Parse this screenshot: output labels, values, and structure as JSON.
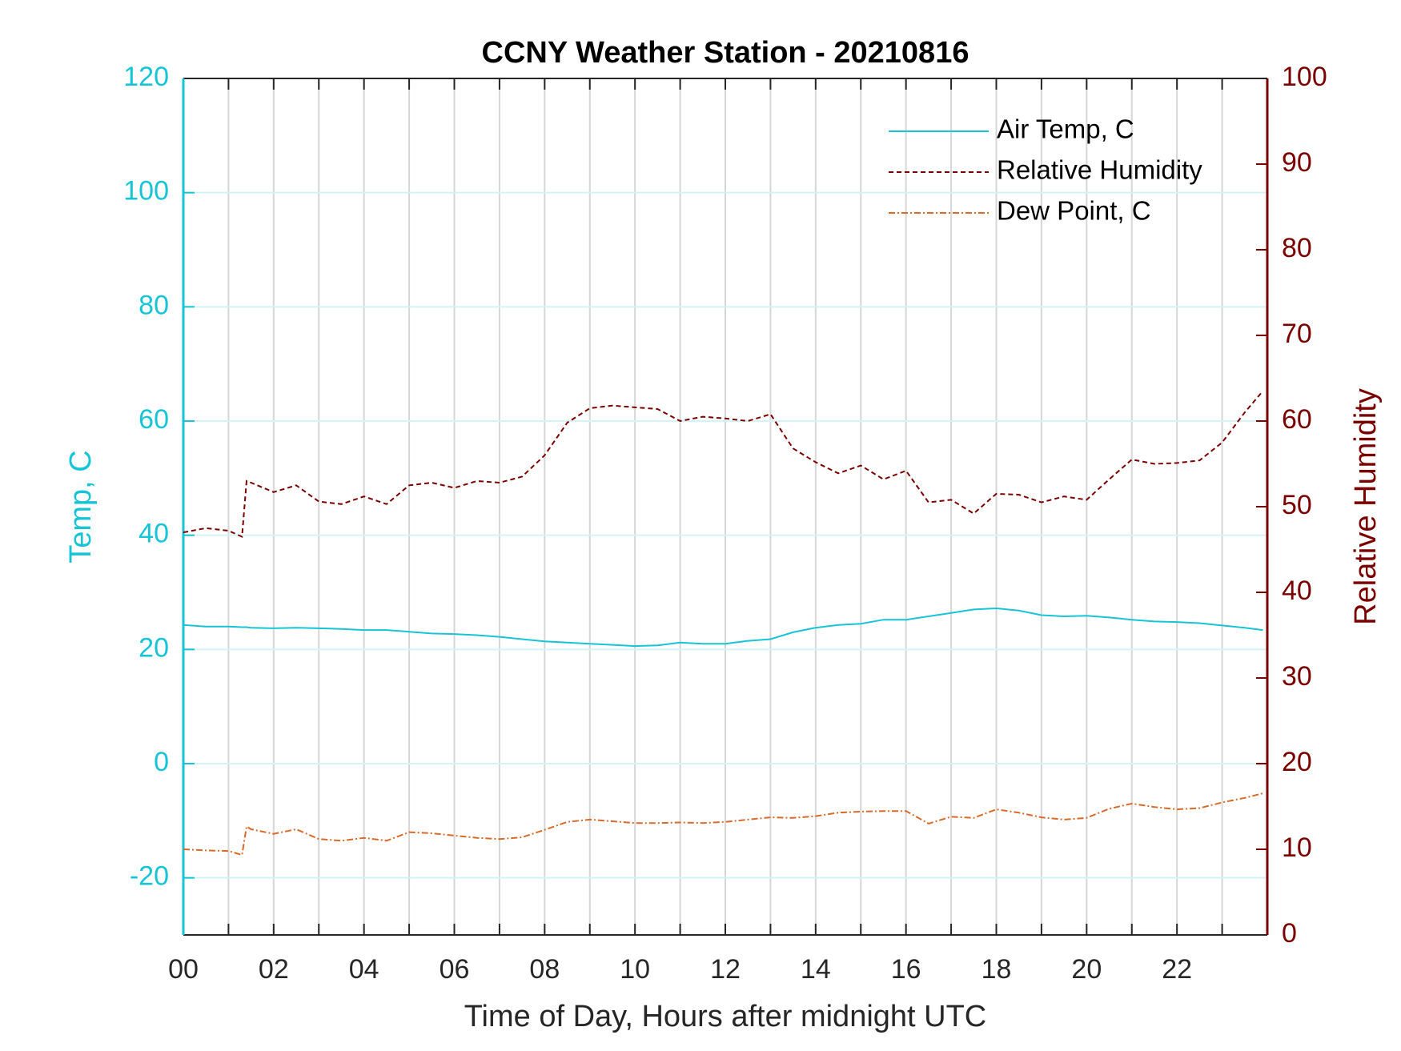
{
  "chart_data": {
    "type": "line",
    "title": "CCNY Weather Station - 20210816",
    "xlabel": "Time of Day, Hours after midnight UTC",
    "ylabel": "Temp, C",
    "y2label": "Relative Humidity",
    "x": [
      0,
      0.5,
      1,
      1.3,
      1.4,
      1.5,
      2,
      2.5,
      3,
      3.5,
      4,
      4.5,
      5,
      5.5,
      6,
      6.5,
      7,
      7.5,
      8,
      8.5,
      9,
      9.5,
      10,
      10.5,
      11,
      11.5,
      12,
      12.5,
      13,
      13.5,
      14,
      14.5,
      15,
      15.5,
      16,
      16.5,
      17,
      17.5,
      18,
      18.5,
      19,
      19.5,
      20,
      20.5,
      21,
      21.5,
      22,
      22.5,
      23,
      23.5,
      23.9
    ],
    "series": [
      {
        "name": "Air Temp, C",
        "color": "#17c4d6",
        "line_style": "solid",
        "values": [
          24.3,
          24,
          24,
          23.9,
          23.9,
          23.8,
          23.7,
          23.8,
          23.7,
          23.6,
          23.4,
          23.4,
          23.1,
          22.8,
          22.7,
          22.5,
          22.2,
          21.8,
          21.4,
          21.2,
          21,
          20.8,
          20.6,
          20.7,
          21.2,
          21,
          21,
          21.5,
          21.8,
          23,
          23.8,
          24.3,
          24.5,
          25.2,
          25.2,
          25.8,
          26.4,
          27,
          27.2,
          26.8,
          26,
          25.8,
          25.9,
          25.6,
          25.2,
          24.9,
          24.8,
          24.6,
          24.2,
          23.8,
          23.4
        ]
      },
      {
        "name": "Relative Humidity",
        "color": "#7a0000",
        "line_style": "dashed",
        "axis": "y2",
        "values": [
          47,
          47.5,
          47.2,
          46.5,
          53,
          52.8,
          51.7,
          52.5,
          50.6,
          50.3,
          51.2,
          50.3,
          52.5,
          52.8,
          52.2,
          53,
          52.8,
          53.5,
          56,
          59.8,
          61.5,
          61.8,
          61.6,
          61.4,
          60,
          60.5,
          60.3,
          60,
          60.8,
          56.8,
          55.2,
          53.9,
          54.8,
          53.2,
          54.2,
          50.5,
          50.8,
          49.2,
          51.5,
          51.4,
          50.5,
          51.2,
          50.8,
          53.2,
          55.5,
          55,
          55.1,
          55.4,
          57.5,
          61,
          63.5
        ]
      },
      {
        "name": "Dew Point, C",
        "color": "#d9692a",
        "line_style": "dashdot",
        "values": [
          -15,
          -15.2,
          -15.3,
          -16,
          -11,
          -11.5,
          -12.3,
          -11.5,
          -13.2,
          -13.5,
          -13,
          -13.5,
          -12,
          -12.2,
          -12.6,
          -13,
          -13.2,
          -12.9,
          -11.6,
          -10.2,
          -9.8,
          -10.1,
          -10.4,
          -10.4,
          -10.3,
          -10.4,
          -10.2,
          -9.8,
          -9.4,
          -9.5,
          -9.2,
          -8.6,
          -8.4,
          -8.3,
          -8.3,
          -10.5,
          -9.3,
          -9.5,
          -8,
          -8.6,
          -9.4,
          -9.8,
          -9.5,
          -7.9,
          -7,
          -7.6,
          -8,
          -7.8,
          -6.8,
          -6,
          -5.2
        ]
      }
    ],
    "xlim": [
      0,
      24
    ],
    "xticks": [
      {
        "value": 0,
        "label": "00"
      },
      {
        "value": 2,
        "label": "02"
      },
      {
        "value": 4,
        "label": "04"
      },
      {
        "value": 6,
        "label": "06"
      },
      {
        "value": 8,
        "label": "08"
      },
      {
        "value": 10,
        "label": "10"
      },
      {
        "value": 12,
        "label": "12"
      },
      {
        "value": 14,
        "label": "14"
      },
      {
        "value": 16,
        "label": "16"
      },
      {
        "value": 18,
        "label": "18"
      },
      {
        "value": 20,
        "label": "20"
      },
      {
        "value": 22,
        "label": "22"
      }
    ],
    "x_minor_ticks": [
      1,
      3,
      5,
      7,
      9,
      11,
      13,
      15,
      17,
      19,
      21,
      23
    ],
    "ylim": [
      -30,
      120
    ],
    "yticks": [
      -20,
      0,
      20,
      40,
      60,
      80,
      100,
      120
    ],
    "y2lim": [
      0,
      100
    ],
    "y2ticks": [
      0,
      10,
      20,
      30,
      40,
      50,
      60,
      70,
      80,
      90,
      100
    ],
    "y_color": "#17c4d6",
    "y2_color": "#7a0000",
    "grid": true,
    "legend": "upper right"
  }
}
